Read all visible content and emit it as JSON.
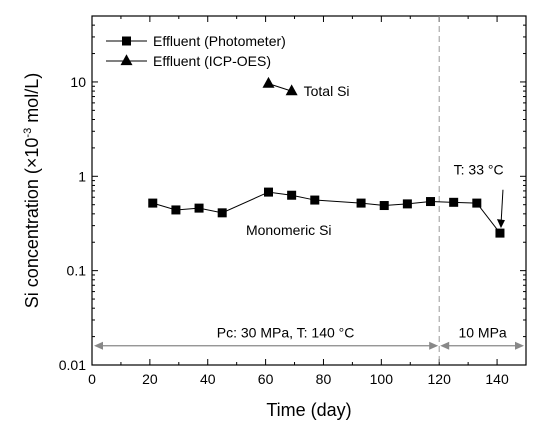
{
  "chart_data": {
    "type": "scatter",
    "xlabel": "Time (day)",
    "ylabel_prefix": "Si concentration (×10",
    "ylabel_sup": "-3",
    "ylabel_suffix": " mol/L)",
    "xlim": [
      0,
      150
    ],
    "ylim": [
      0.01,
      50
    ],
    "yscale": "log",
    "xticks": [
      0,
      20,
      40,
      60,
      80,
      100,
      120,
      140
    ],
    "yticks": [
      0.01,
      0.1,
      1,
      10
    ],
    "ytick_labels": [
      "0.01",
      "0.1",
      "1",
      "10"
    ],
    "legend_position": "top-left",
    "series": [
      {
        "name": "Effluent (Photometer)",
        "marker": "square",
        "line": true,
        "x": [
          21,
          29,
          37,
          45,
          61,
          69,
          77,
          93,
          101,
          109,
          117,
          125,
          133,
          141
        ],
        "y": [
          0.52,
          0.44,
          0.46,
          0.41,
          0.68,
          0.63,
          0.56,
          0.52,
          0.49,
          0.51,
          0.54,
          0.53,
          0.52,
          0.25
        ]
      },
      {
        "name": "Effluent (ICP-OES)",
        "marker": "triangle",
        "line": true,
        "x": [
          61,
          69
        ],
        "y": [
          9.6,
          8.0
        ]
      }
    ],
    "vline_x": 120,
    "annotations": {
      "total_si": "Total Si",
      "monomeric_si": "Monomeric Si",
      "temperature": "T: 33 °C",
      "range1": "Pc: 30 MPa, T: 140 °C",
      "range2": "10 MPa"
    }
  }
}
